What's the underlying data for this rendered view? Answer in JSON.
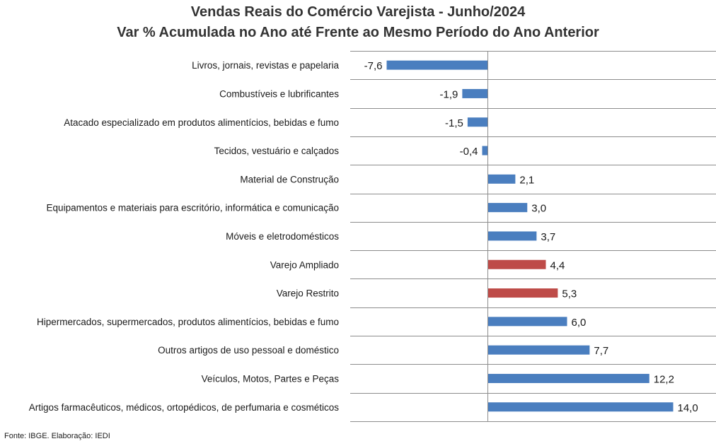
{
  "title": "Vendas Reais do Comércio Varejista - Junho/2024",
  "subtitle": "Var % Acumulada no Ano até Frente ao Mesmo Período do Ano Anterior",
  "source": "Fonte: IBGE. Elaboração: IEDI",
  "colors": {
    "default_bar": "#4a7ebf",
    "highlight_bar": "#be4b48",
    "grid": "#8c8c8c"
  },
  "chart_data": {
    "type": "bar",
    "orientation": "horizontal",
    "title": "Vendas Reais do Comércio Varejista - Junho/2024",
    "subtitle": "Var % Acumulada no Ano até Frente ao Mesmo Período do Ano Anterior",
    "categories": [
      "Livros, jornais, revistas e papelaria",
      "Combustíveis e lubrificantes",
      "Atacado especializado em produtos alimentícios, bebidas e fumo",
      "Tecidos, vestuário e calçados",
      "Material de Construção",
      "Equipamentos e materiais para escritório, informática e comunicação",
      "Móveis e eletrodomésticos",
      "Varejo Ampliado",
      "Varejo Restrito",
      "Hipermercados, supermercados, produtos alimentícios, bebidas e fumo",
      "Outros artigos de uso pessoal e doméstico",
      "Veículos, Motos, Partes e Peças",
      "Artigos farmacêuticos, médicos, ortopédicos, de perfumaria e cosméticos"
    ],
    "values": [
      -7.6,
      -1.9,
      -1.5,
      -0.4,
      2.1,
      3.0,
      3.7,
      4.4,
      5.3,
      6.0,
      7.7,
      12.2,
      14.0
    ],
    "value_labels": [
      "-7,6",
      "-1,9",
      "-1,5",
      "-0,4",
      "2,1",
      "3,0",
      "3,7",
      "4,4",
      "5,3",
      "6,0",
      "7,7",
      "12,2",
      "14,0"
    ],
    "highlighted": [
      "Varejo Ampliado",
      "Varejo Restrito"
    ],
    "xlim": [
      -10,
      17
    ],
    "grid": "horizontal separators between categories",
    "legend": "none"
  }
}
